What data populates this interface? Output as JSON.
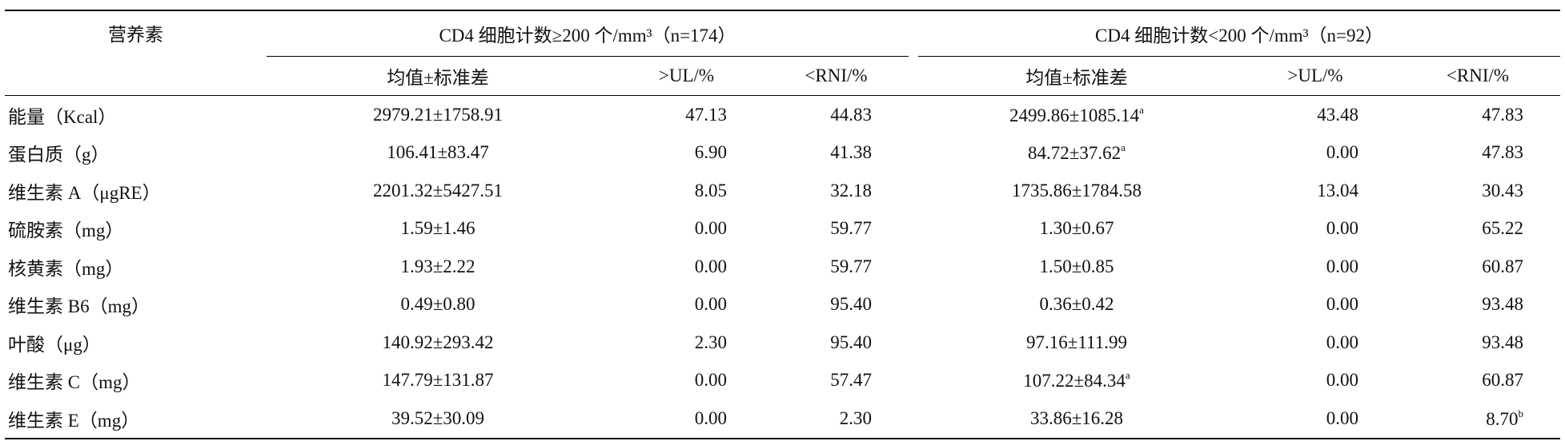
{
  "table": {
    "header": {
      "label": "营养素",
      "groups": [
        "CD4 细胞计数≥200 个/mm³（n=174）",
        "CD4 细胞计数<200 个/mm³（n=92）"
      ],
      "columns": [
        "均值±标准差",
        ">UL/%",
        "<RNI/%",
        "均值±标准差",
        ">UL/%",
        "<RNI/%"
      ]
    },
    "rows": [
      [
        "能量（Kcal）",
        "2979.21±1758.91",
        "47.13",
        "44.83",
        {
          "text": "2499.86±1085.14",
          "sup": "a"
        },
        "43.48",
        "47.83"
      ],
      [
        "蛋白质（g）",
        "106.41±83.47",
        "6.90",
        "41.38",
        {
          "text": "84.72±37.62",
          "sup": "a"
        },
        "0.00",
        "47.83"
      ],
      [
        "维生素 A（μgRE）",
        "2201.32±5427.51",
        "8.05",
        "32.18",
        "1735.86±1784.58",
        "13.04",
        "30.43"
      ],
      [
        "硫胺素（mg）",
        "1.59±1.46",
        "0.00",
        "59.77",
        "1.30±0.67",
        "0.00",
        "65.22"
      ],
      [
        "核黄素（mg）",
        "1.93±2.22",
        "0.00",
        "59.77",
        "1.50±0.85",
        "0.00",
        "60.87"
      ],
      [
        "维生素 B6（mg）",
        "0.49±0.80",
        "0.00",
        "95.40",
        "0.36±0.42",
        "0.00",
        "93.48"
      ],
      [
        "叶酸（μg）",
        "140.92±293.42",
        "2.30",
        "95.40",
        "97.16±111.99",
        "0.00",
        "93.48"
      ],
      [
        "维生素 C（mg）",
        "147.79±131.87",
        "0.00",
        "57.47",
        {
          "text": "107.22±84.34",
          "sup": "a"
        },
        "0.00",
        "60.87"
      ],
      [
        "维生素 E（mg）",
        "39.52±30.09",
        "0.00",
        "2.30",
        "33.86±16.28",
        "0.00",
        {
          "text": "8.70",
          "sup": "b"
        }
      ]
    ]
  }
}
